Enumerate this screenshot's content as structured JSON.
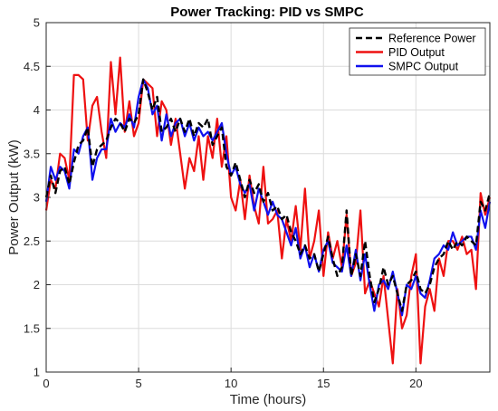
{
  "chart_data": {
    "type": "line",
    "title": "Power Tracking: PID vs SMPC",
    "xlabel": "Time (hours)",
    "ylabel": "Power Output (kW)",
    "xlim": [
      0,
      24
    ],
    "ylim": [
      1,
      5
    ],
    "xticks": [
      0,
      5,
      10,
      15,
      20
    ],
    "yticks": [
      1,
      1.5,
      2,
      2.5,
      3,
      3.5,
      4,
      4.5,
      5
    ],
    "grid": true,
    "legend_position": "top-right",
    "series": [
      {
        "name": "Reference Power",
        "color": "#000000",
        "dash": "dashed",
        "points": [
          [
            0,
            3.0
          ],
          [
            0.25,
            3.25
          ],
          [
            0.5,
            3.05
          ],
          [
            0.75,
            3.3
          ],
          [
            1,
            3.35
          ],
          [
            1.25,
            3.15
          ],
          [
            1.5,
            3.4
          ],
          [
            1.75,
            3.6
          ],
          [
            2,
            3.65
          ],
          [
            2.25,
            3.8
          ],
          [
            2.5,
            3.35
          ],
          [
            2.75,
            3.55
          ],
          [
            3,
            3.6
          ],
          [
            3.25,
            3.65
          ],
          [
            3.5,
            3.8
          ],
          [
            3.75,
            3.9
          ],
          [
            4,
            3.85
          ],
          [
            4.25,
            3.75
          ],
          [
            4.5,
            3.9
          ],
          [
            4.75,
            3.85
          ],
          [
            5,
            3.95
          ],
          [
            5.25,
            4.35
          ],
          [
            5.5,
            4.2
          ],
          [
            5.75,
            4.0
          ],
          [
            6,
            4.15
          ],
          [
            6.25,
            3.75
          ],
          [
            6.5,
            3.8
          ],
          [
            6.75,
            3.9
          ],
          [
            7,
            3.75
          ],
          [
            7.25,
            3.9
          ],
          [
            7.5,
            3.75
          ],
          [
            7.75,
            3.9
          ],
          [
            8,
            3.7
          ],
          [
            8.25,
            3.85
          ],
          [
            8.5,
            3.8
          ],
          [
            8.75,
            3.9
          ],
          [
            9,
            3.6
          ],
          [
            9.25,
            3.7
          ],
          [
            9.5,
            3.8
          ],
          [
            9.75,
            3.35
          ],
          [
            10,
            3.25
          ],
          [
            10.25,
            3.4
          ],
          [
            10.5,
            3.2
          ],
          [
            10.75,
            3.0
          ],
          [
            11,
            3.2
          ],
          [
            11.25,
            3.05
          ],
          [
            11.5,
            3.15
          ],
          [
            11.75,
            2.95
          ],
          [
            12,
            3.05
          ],
          [
            12.25,
            2.85
          ],
          [
            12.5,
            2.9
          ],
          [
            12.75,
            2.75
          ],
          [
            13,
            2.8
          ],
          [
            13.25,
            2.6
          ],
          [
            13.5,
            2.5
          ],
          [
            13.75,
            2.35
          ],
          [
            14,
            2.45
          ],
          [
            14.25,
            2.3
          ],
          [
            14.5,
            2.35
          ],
          [
            14.75,
            2.15
          ],
          [
            15,
            2.35
          ],
          [
            15.25,
            2.55
          ],
          [
            15.5,
            2.3
          ],
          [
            15.75,
            2.1
          ],
          [
            16,
            2.2
          ],
          [
            16.25,
            2.85
          ],
          [
            16.5,
            2.1
          ],
          [
            16.75,
            2.35
          ],
          [
            17,
            2.1
          ],
          [
            17.25,
            2.5
          ],
          [
            17.5,
            2.1
          ],
          [
            17.75,
            1.8
          ],
          [
            18,
            1.95
          ],
          [
            18.25,
            2.2
          ],
          [
            18.5,
            2.0
          ],
          [
            18.75,
            2.1
          ],
          [
            19,
            1.9
          ],
          [
            19.25,
            1.7
          ],
          [
            19.5,
            2.0
          ],
          [
            19.75,
            2.05
          ],
          [
            20,
            2.15
          ],
          [
            20.25,
            1.95
          ],
          [
            20.5,
            1.9
          ],
          [
            20.75,
            2.0
          ],
          [
            21,
            2.2
          ],
          [
            21.25,
            2.3
          ],
          [
            21.5,
            2.35
          ],
          [
            21.75,
            2.5
          ],
          [
            22,
            2.4
          ],
          [
            22.25,
            2.5
          ],
          [
            22.5,
            2.45
          ],
          [
            22.75,
            2.55
          ],
          [
            23,
            2.5
          ],
          [
            23.25,
            2.45
          ],
          [
            23.5,
            2.95
          ],
          [
            23.75,
            2.85
          ],
          [
            24,
            3.05
          ]
        ]
      },
      {
        "name": "PID Output",
        "color": "#ee1111",
        "dash": "solid",
        "points": [
          [
            0,
            2.85
          ],
          [
            0.25,
            3.2
          ],
          [
            0.5,
            3.1
          ],
          [
            0.75,
            3.5
          ],
          [
            1,
            3.45
          ],
          [
            1.25,
            3.2
          ],
          [
            1.5,
            4.4
          ],
          [
            1.75,
            4.4
          ],
          [
            2,
            4.35
          ],
          [
            2.25,
            3.65
          ],
          [
            2.5,
            4.05
          ],
          [
            2.75,
            4.15
          ],
          [
            3,
            3.75
          ],
          [
            3.25,
            3.45
          ],
          [
            3.5,
            4.55
          ],
          [
            3.75,
            3.95
          ],
          [
            4,
            4.6
          ],
          [
            4.25,
            3.75
          ],
          [
            4.5,
            4.1
          ],
          [
            4.75,
            3.7
          ],
          [
            5,
            3.85
          ],
          [
            5.25,
            4.35
          ],
          [
            5.5,
            4.3
          ],
          [
            5.75,
            4.25
          ],
          [
            6,
            3.7
          ],
          [
            6.25,
            4.1
          ],
          [
            6.5,
            4.0
          ],
          [
            6.75,
            3.6
          ],
          [
            7,
            3.9
          ],
          [
            7.25,
            3.5
          ],
          [
            7.5,
            3.1
          ],
          [
            7.75,
            3.45
          ],
          [
            8,
            3.3
          ],
          [
            8.25,
            3.7
          ],
          [
            8.5,
            3.2
          ],
          [
            8.75,
            3.7
          ],
          [
            9,
            3.45
          ],
          [
            9.25,
            3.9
          ],
          [
            9.5,
            3.35
          ],
          [
            9.75,
            3.7
          ],
          [
            10,
            3.0
          ],
          [
            10.25,
            2.85
          ],
          [
            10.5,
            3.2
          ],
          [
            10.75,
            2.75
          ],
          [
            11,
            3.25
          ],
          [
            11.25,
            2.9
          ],
          [
            11.5,
            2.7
          ],
          [
            11.75,
            3.35
          ],
          [
            12,
            2.7
          ],
          [
            12.25,
            2.75
          ],
          [
            12.5,
            2.85
          ],
          [
            12.75,
            2.3
          ],
          [
            13,
            2.75
          ],
          [
            13.25,
            2.5
          ],
          [
            13.5,
            2.9
          ],
          [
            13.75,
            2.4
          ],
          [
            14,
            3.1
          ],
          [
            14.25,
            2.3
          ],
          [
            14.5,
            2.5
          ],
          [
            14.75,
            2.85
          ],
          [
            15,
            2.1
          ],
          [
            15.25,
            2.6
          ],
          [
            15.5,
            2.3
          ],
          [
            15.75,
            2.5
          ],
          [
            16,
            2.2
          ],
          [
            16.25,
            2.8
          ],
          [
            16.5,
            2.1
          ],
          [
            16.75,
            2.25
          ],
          [
            17,
            2.85
          ],
          [
            17.25,
            1.9
          ],
          [
            17.5,
            2.05
          ],
          [
            17.75,
            1.9
          ],
          [
            18,
            1.75
          ],
          [
            18.25,
            2.1
          ],
          [
            18.5,
            1.6
          ],
          [
            18.75,
            1.1
          ],
          [
            19,
            1.95
          ],
          [
            19.25,
            1.5
          ],
          [
            19.5,
            1.65
          ],
          [
            19.75,
            2.1
          ],
          [
            20,
            2.35
          ],
          [
            20.25,
            1.1
          ],
          [
            20.5,
            1.75
          ],
          [
            20.75,
            1.95
          ],
          [
            21,
            1.7
          ],
          [
            21.25,
            2.3
          ],
          [
            21.5,
            2.1
          ],
          [
            21.75,
            2.5
          ],
          [
            22,
            2.5
          ],
          [
            22.25,
            2.4
          ],
          [
            22.5,
            2.55
          ],
          [
            22.75,
            2.35
          ],
          [
            23,
            2.4
          ],
          [
            23.25,
            1.95
          ],
          [
            23.5,
            3.05
          ],
          [
            23.75,
            2.8
          ],
          [
            24,
            3.0
          ]
        ]
      },
      {
        "name": "SMPC Output",
        "color": "#1111ee",
        "dash": "solid",
        "points": [
          [
            0,
            2.95
          ],
          [
            0.25,
            3.35
          ],
          [
            0.5,
            3.2
          ],
          [
            0.75,
            3.35
          ],
          [
            1,
            3.3
          ],
          [
            1.25,
            3.1
          ],
          [
            1.5,
            3.55
          ],
          [
            1.75,
            3.5
          ],
          [
            2,
            3.7
          ],
          [
            2.25,
            3.8
          ],
          [
            2.5,
            3.2
          ],
          [
            2.75,
            3.45
          ],
          [
            3,
            3.55
          ],
          [
            3.25,
            3.55
          ],
          [
            3.5,
            3.9
          ],
          [
            3.75,
            3.75
          ],
          [
            4,
            3.85
          ],
          [
            4.25,
            3.8
          ],
          [
            4.5,
            3.95
          ],
          [
            4.75,
            3.8
          ],
          [
            5,
            4.15
          ],
          [
            5.25,
            4.35
          ],
          [
            5.5,
            4.25
          ],
          [
            5.75,
            3.95
          ],
          [
            6,
            4.05
          ],
          [
            6.25,
            3.65
          ],
          [
            6.5,
            3.95
          ],
          [
            6.75,
            3.7
          ],
          [
            7,
            3.85
          ],
          [
            7.25,
            3.9
          ],
          [
            7.5,
            3.7
          ],
          [
            7.75,
            3.85
          ],
          [
            8,
            3.65
          ],
          [
            8.25,
            3.8
          ],
          [
            8.5,
            3.7
          ],
          [
            8.75,
            3.75
          ],
          [
            9,
            3.65
          ],
          [
            9.25,
            3.75
          ],
          [
            9.5,
            3.85
          ],
          [
            9.75,
            3.5
          ],
          [
            10,
            3.25
          ],
          [
            10.25,
            3.35
          ],
          [
            10.5,
            3.15
          ],
          [
            10.75,
            3.05
          ],
          [
            11,
            3.15
          ],
          [
            11.25,
            2.85
          ],
          [
            11.5,
            3.1
          ],
          [
            11.75,
            2.95
          ],
          [
            12,
            2.8
          ],
          [
            12.25,
            2.95
          ],
          [
            12.5,
            2.8
          ],
          [
            12.75,
            2.75
          ],
          [
            13,
            2.6
          ],
          [
            13.25,
            2.45
          ],
          [
            13.5,
            2.65
          ],
          [
            13.75,
            2.3
          ],
          [
            14,
            2.45
          ],
          [
            14.25,
            2.2
          ],
          [
            14.5,
            2.35
          ],
          [
            14.75,
            2.15
          ],
          [
            15,
            2.4
          ],
          [
            15.25,
            2.5
          ],
          [
            15.5,
            2.25
          ],
          [
            15.75,
            2.2
          ],
          [
            16,
            2.15
          ],
          [
            16.25,
            2.45
          ],
          [
            16.5,
            2.1
          ],
          [
            16.75,
            2.4
          ],
          [
            17,
            2.05
          ],
          [
            17.25,
            2.35
          ],
          [
            17.5,
            2.0
          ],
          [
            17.75,
            1.7
          ],
          [
            18,
            2.0
          ],
          [
            18.25,
            2.05
          ],
          [
            18.5,
            1.95
          ],
          [
            18.75,
            2.15
          ],
          [
            19,
            1.9
          ],
          [
            19.25,
            1.65
          ],
          [
            19.5,
            2.0
          ],
          [
            19.75,
            1.95
          ],
          [
            20,
            2.1
          ],
          [
            20.25,
            1.9
          ],
          [
            20.5,
            1.85
          ],
          [
            20.75,
            2.05
          ],
          [
            21,
            2.3
          ],
          [
            21.25,
            2.35
          ],
          [
            21.5,
            2.45
          ],
          [
            21.75,
            2.4
          ],
          [
            22,
            2.6
          ],
          [
            22.25,
            2.45
          ],
          [
            22.5,
            2.5
          ],
          [
            22.75,
            2.55
          ],
          [
            23,
            2.55
          ],
          [
            23.25,
            2.4
          ],
          [
            23.5,
            2.85
          ],
          [
            23.75,
            2.65
          ],
          [
            24,
            2.95
          ]
        ]
      }
    ]
  }
}
